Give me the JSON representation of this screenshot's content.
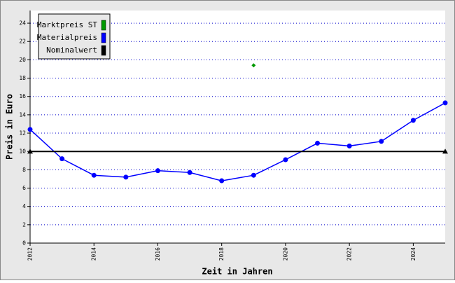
{
  "chart_data": {
    "type": "line",
    "x_label": "Zeit in Jahren",
    "y_label": "Preis in Euro",
    "xlim": [
      2012,
      2025
    ],
    "xticks": [
      2012,
      2014,
      2016,
      2018,
      2020,
      2022,
      2024
    ],
    "ylim": [
      0,
      25
    ],
    "yticks": [
      0,
      2,
      4,
      6,
      8,
      10,
      12,
      14,
      16,
      18,
      20,
      22,
      24
    ],
    "grid": true,
    "legend": "top-left",
    "series": [
      {
        "name": "Marktpreis ST",
        "color": "#009900",
        "marker": "diamond",
        "line": false,
        "x": [
          2019
        ],
        "values": [
          19.4
        ]
      },
      {
        "name": "Materialpreis",
        "color": "#0000ff",
        "marker": "circle",
        "line": true,
        "x": [
          2012,
          2013,
          2014,
          2015,
          2016,
          2017,
          2018,
          2019,
          2020,
          2021,
          2022,
          2023,
          2024,
          2025
        ],
        "values": [
          12.4,
          9.2,
          7.4,
          7.2,
          7.9,
          7.7,
          6.8,
          7.4,
          9.1,
          10.9,
          10.6,
          11.1,
          13.4,
          15.3
        ]
      },
      {
        "name": "Nominalwert",
        "color": "#000000",
        "marker": "triangle",
        "line": true,
        "x": [
          2012,
          2025
        ],
        "values": [
          10,
          10
        ]
      }
    ]
  }
}
